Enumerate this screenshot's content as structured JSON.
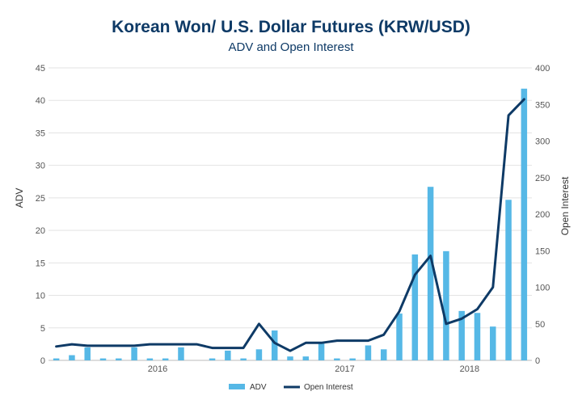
{
  "chart_data": {
    "type": "bar",
    "title": "Korean Won/ U.S. Dollar Futures (KRW/USD)",
    "subtitle": "ADV and Open Interest",
    "ylabel": "ADV",
    "y2label": "Open Interest",
    "ylim": [
      0,
      45
    ],
    "y2lim": [
      0,
      400
    ],
    "yticks": [
      0,
      5,
      10,
      15,
      20,
      25,
      30,
      35,
      40,
      45
    ],
    "y2ticks": [
      0,
      50,
      100,
      150,
      200,
      250,
      300,
      350,
      400
    ],
    "x_labels": [
      {
        "label": "2016",
        "index": 6.5
      },
      {
        "label": "2017",
        "index": 18.5
      },
      {
        "label": "2018",
        "index": 26.5
      }
    ],
    "grid": true,
    "legend_position": "bottom",
    "series": [
      {
        "name": "ADV",
        "type": "bar",
        "axis": "left",
        "color": "#56b8e6",
        "values": [
          0.3,
          0.8,
          2.0,
          0.3,
          0.3,
          2.0,
          0.3,
          0.3,
          2.0,
          0,
          0.3,
          1.5,
          0.3,
          1.7,
          4.6,
          0.6,
          0.6,
          2.6,
          0.3,
          0.3,
          2.3,
          1.7,
          7.2,
          16.3,
          26.7,
          16.8,
          7.6,
          7.3,
          5.2,
          24.7,
          41.8
        ]
      },
      {
        "name": "Open Interest",
        "type": "line",
        "axis": "right",
        "color": "#0e3a66",
        "values": [
          19,
          22,
          20,
          20,
          20,
          20,
          22,
          22,
          22,
          22,
          17,
          17,
          17,
          50,
          24,
          13,
          24,
          24,
          27,
          27,
          27,
          35,
          67,
          117,
          143,
          50,
          57,
          70,
          100,
          335,
          357
        ]
      }
    ]
  }
}
